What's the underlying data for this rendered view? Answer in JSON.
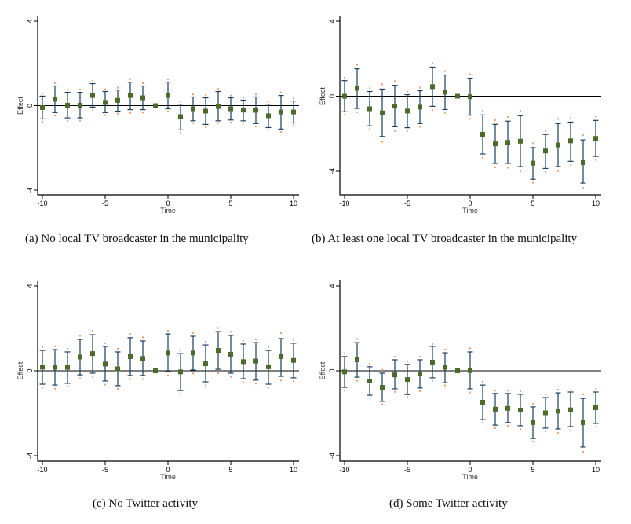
{
  "colors": {
    "estimate_marker": "#4b6b2a",
    "ci_bar": "#1b3d5e",
    "outer_dot": "#f2a272",
    "axis": "#000000",
    "zero_line": "#000000"
  },
  "chart_data": [
    {
      "id": "a",
      "type": "scatter",
      "caption": "(a) No local TV broadcaster in the municipality",
      "xlabel": "Time",
      "ylabel": "Effect",
      "xticks": [
        "-10",
        "-5",
        "0",
        "5",
        "10"
      ],
      "yticks": [
        "4",
        "0",
        "-4"
      ],
      "xlim": [
        -10,
        10
      ],
      "ylim": [
        -4,
        4
      ],
      "reference_line_y": 0,
      "x": [
        -10,
        -9,
        -8,
        -7,
        -6,
        -5,
        -4,
        -3,
        -2,
        -1,
        0,
        1,
        2,
        3,
        4,
        5,
        6,
        7,
        8,
        9,
        10
      ],
      "estimate": [
        -0.09,
        0.3,
        0.02,
        0.02,
        0.48,
        0.15,
        0.25,
        0.48,
        0.37,
        0.0,
        0.48,
        -0.52,
        -0.15,
        -0.26,
        -0.04,
        -0.15,
        -0.21,
        -0.22,
        -0.48,
        -0.3,
        -0.3
      ],
      "ci_low": [
        -0.63,
        -0.33,
        -0.58,
        -0.58,
        -0.07,
        -0.33,
        -0.26,
        -0.19,
        -0.19,
        0.0,
        -0.15,
        -1.15,
        -0.72,
        -0.89,
        -0.72,
        -0.68,
        -0.72,
        -0.85,
        -1.04,
        -1.11,
        -0.82
      ],
      "ci_high": [
        0.45,
        0.93,
        0.63,
        0.63,
        1.04,
        0.67,
        0.74,
        1.11,
        0.93,
        0.0,
        1.11,
        0.07,
        0.41,
        0.37,
        0.67,
        0.37,
        0.26,
        0.41,
        0.07,
        0.48,
        0.22
      ],
      "outer_low": [
        -0.76,
        -0.47,
        -0.72,
        -0.71,
        -0.2,
        -0.45,
        -0.38,
        -0.34,
        -0.33,
        0.0,
        -0.28,
        -1.27,
        -0.83,
        -1.02,
        -0.83,
        -0.8,
        -0.83,
        -0.98,
        -1.15,
        -1.25,
        -0.93
      ],
      "outer_high": [
        0.58,
        1.07,
        0.75,
        0.76,
        1.17,
        0.78,
        0.85,
        1.26,
        1.06,
        0.0,
        1.24,
        0.2,
        0.53,
        0.5,
        0.79,
        0.48,
        0.37,
        0.53,
        0.19,
        0.63,
        0.34
      ]
    },
    {
      "id": "b",
      "type": "scatter",
      "caption": "(b) At least one local TV broadcaster in the municipality",
      "xlabel": "Time",
      "ylabel": "Effect",
      "xticks": [
        "-10",
        "-5",
        "0",
        "5",
        "10"
      ],
      "yticks": [
        "4",
        "0",
        "-4"
      ],
      "xlim": [
        -10,
        10
      ],
      "ylim": [
        -4,
        4
      ],
      "reference_line_y": 0,
      "x": [
        -10,
        -9,
        -8,
        -7,
        -6,
        -5,
        -4,
        -3,
        -2,
        -1,
        0,
        1,
        2,
        3,
        4,
        5,
        6,
        7,
        8,
        9,
        10
      ],
      "estimate": [
        0.0,
        0.42,
        -0.67,
        -0.89,
        -0.53,
        -0.79,
        -0.58,
        0.51,
        0.21,
        0.0,
        -0.03,
        -2.03,
        -2.54,
        -2.46,
        -2.4,
        -3.57,
        -2.92,
        -2.6,
        -2.38,
        -3.54,
        -2.25
      ],
      "ci_low": [
        -0.83,
        -0.65,
        -1.58,
        -2.15,
        -1.63,
        -1.68,
        -1.46,
        -0.54,
        -0.71,
        0.0,
        -1.01,
        -3.08,
        -3.58,
        -3.58,
        -3.75,
        -4.43,
        -3.85,
        -3.75,
        -3.47,
        -4.63,
        -3.21
      ],
      "ci_high": [
        0.83,
        1.46,
        0.25,
        0.38,
        0.58,
        0.08,
        0.29,
        1.55,
        1.13,
        0.0,
        0.96,
        -1.0,
        -1.5,
        -1.33,
        -1.04,
        -2.74,
        -2.04,
        -1.46,
        -1.38,
        -2.33,
        -1.29
      ],
      "outer_low": [
        -0.99,
        -0.85,
        -1.76,
        -2.43,
        -1.85,
        -1.85,
        -1.63,
        -0.74,
        -0.89,
        0.0,
        -1.21,
        -3.29,
        -3.79,
        -3.81,
        -4.0,
        -4.61,
        -4.05,
        -3.98,
        -3.68,
        -4.9,
        -3.4
      ],
      "outer_high": [
        0.99,
        1.67,
        0.43,
        0.63,
        0.8,
        0.25,
        0.46,
        1.76,
        1.33,
        0.0,
        1.17,
        -0.78,
        -1.28,
        -1.11,
        -0.78,
        -2.51,
        -1.85,
        -1.21,
        -1.17,
        -2.08,
        -1.11
      ]
    },
    {
      "id": "c",
      "type": "scatter",
      "caption": "(c) No Twitter activity",
      "xlabel": "Time",
      "ylabel": "Effect",
      "xticks": [
        "-10",
        "-5",
        "0",
        "5",
        "10"
      ],
      "yticks": [
        "4",
        "0",
        "-4"
      ],
      "xlim": [
        -10,
        10
      ],
      "ylim": [
        -4,
        4
      ],
      "reference_line_y": 0,
      "x": [
        -10,
        -9,
        -8,
        -7,
        -6,
        -5,
        -4,
        -3,
        -2,
        -1,
        0,
        1,
        2,
        3,
        4,
        5,
        6,
        7,
        8,
        9,
        10
      ],
      "estimate": [
        0.17,
        0.16,
        0.16,
        0.65,
        0.81,
        0.32,
        0.09,
        0.67,
        0.58,
        0.0,
        0.84,
        -0.05,
        0.84,
        0.33,
        0.96,
        0.78,
        0.43,
        0.46,
        0.19,
        0.67,
        0.49
      ],
      "ci_low": [
        -0.63,
        -0.67,
        -0.59,
        -0.19,
        -0.11,
        -0.48,
        -0.7,
        -0.22,
        -0.22,
        0.0,
        -0.04,
        -0.93,
        0.04,
        -0.52,
        0.07,
        -0.11,
        -0.37,
        -0.44,
        -0.63,
        -0.26,
        -0.33
      ],
      "ci_high": [
        0.96,
        1.0,
        0.89,
        1.48,
        1.7,
        1.15,
        0.89,
        1.56,
        1.41,
        0.0,
        1.74,
        0.81,
        1.63,
        1.22,
        1.85,
        1.67,
        1.26,
        1.33,
        0.96,
        1.52,
        1.3
      ],
      "outer_low": [
        -0.79,
        -0.84,
        -0.73,
        -0.36,
        -0.28,
        -0.65,
        -0.85,
        -0.39,
        -0.39,
        0.0,
        -0.22,
        -1.09,
        -0.12,
        -0.69,
        -0.11,
        -0.28,
        -0.53,
        -0.6,
        -0.79,
        -0.46,
        -0.48
      ],
      "outer_high": [
        1.12,
        1.16,
        1.04,
        1.65,
        1.89,
        1.3,
        1.04,
        1.73,
        1.58,
        0.0,
        1.89,
        0.96,
        1.78,
        1.37,
        2.02,
        1.85,
        1.41,
        1.48,
        1.12,
        1.78,
        1.46
      ]
    },
    {
      "id": "d",
      "type": "scatter",
      "caption": "(d) Some Twitter activity",
      "xlabel": "Time",
      "ylabel": "Effect",
      "xticks": [
        "-10",
        "-5",
        "0",
        "5",
        "10"
      ],
      "yticks": [
        "4",
        "0",
        "-4"
      ],
      "xlim": [
        -10,
        10
      ],
      "ylim": [
        -4,
        4
      ],
      "reference_line_y": 0,
      "x": [
        -10,
        -9,
        -8,
        -7,
        -6,
        -5,
        -4,
        -3,
        -2,
        -1,
        0,
        1,
        2,
        3,
        4,
        5,
        6,
        7,
        8,
        9,
        10
      ],
      "estimate": [
        -0.05,
        0.52,
        -0.48,
        -0.78,
        -0.19,
        -0.41,
        -0.15,
        0.41,
        0.16,
        0.0,
        0.01,
        -1.48,
        -1.81,
        -1.77,
        -1.85,
        -2.44,
        -1.98,
        -1.9,
        -1.84,
        -2.44,
        -1.74
      ],
      "ci_low": [
        -0.78,
        -0.3,
        -1.15,
        -1.44,
        -0.85,
        -1.12,
        -0.81,
        -0.33,
        -0.56,
        0.0,
        -0.85,
        -2.3,
        -2.56,
        -2.44,
        -2.59,
        -3.19,
        -2.7,
        -2.74,
        -2.63,
        -3.59,
        -2.48
      ],
      "ci_high": [
        0.67,
        1.33,
        0.19,
        -0.11,
        0.52,
        0.3,
        0.52,
        1.15,
        0.85,
        0.0,
        0.89,
        -0.67,
        -1.07,
        -1.07,
        -1.11,
        -1.7,
        -1.26,
        -1.04,
        -1.0,
        -1.3,
        -1.0
      ],
      "outer_low": [
        -0.93,
        -0.47,
        -1.28,
        -1.58,
        -0.99,
        -1.23,
        -0.96,
        -0.47,
        -0.69,
        0.0,
        -1.02,
        -2.44,
        -2.7,
        -2.59,
        -2.74,
        -3.33,
        -2.85,
        -2.93,
        -2.81,
        -3.81,
        -2.63
      ],
      "outer_high": [
        0.81,
        1.5,
        0.33,
        0.04,
        0.67,
        0.44,
        0.67,
        1.26,
        1.0,
        0.0,
        1.06,
        -0.52,
        -0.93,
        -0.93,
        -0.96,
        -1.56,
        -1.11,
        -0.89,
        -0.89,
        -1.11,
        -0.85
      ]
    }
  ]
}
